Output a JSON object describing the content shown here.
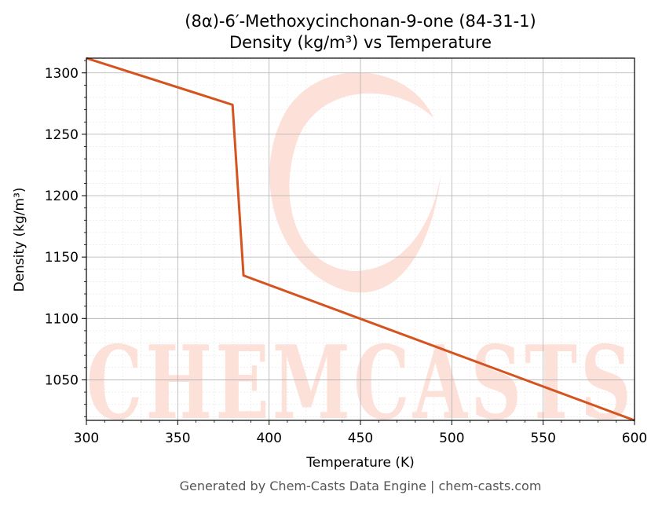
{
  "chart_data": {
    "type": "line",
    "title": "(8α)-6′-Methoxycinchonan-9-one (84-31-1)",
    "subtitle": "Density (kg/m³) vs Temperature",
    "xlabel": "Temperature (K)",
    "ylabel": "Density (kg/m³)",
    "xlim": [
      300,
      600
    ],
    "ylim": [
      1017,
      1312
    ],
    "x_ticks": [
      300,
      350,
      400,
      450,
      500,
      550,
      600
    ],
    "y_ticks": [
      1050,
      1100,
      1150,
      1200,
      1250,
      1300
    ],
    "grid": true,
    "series": [
      {
        "color": "#d4531f",
        "x": [
          300,
          380,
          386,
          600
        ],
        "y": [
          1312,
          1274,
          1135,
          1017
        ]
      }
    ]
  },
  "watermark": {
    "text": "CHEMCASTS",
    "color": "#fde0d8"
  },
  "footer": "Generated by Chem-Casts Data Engine | chem-casts.com"
}
